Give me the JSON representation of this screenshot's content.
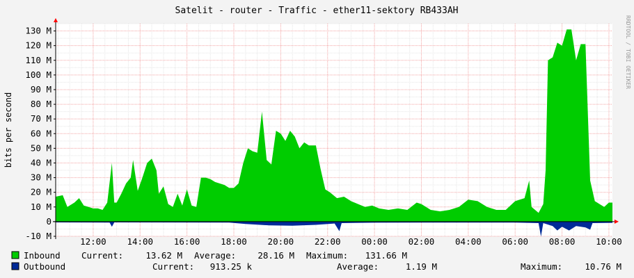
{
  "chart_data": {
    "type": "area",
    "title": "Satelit - router - Traffic - ether11-sektory RB433AH",
    "ylabel": "bits per second",
    "watermark": "RRDTOOL / TOBI OETIKER",
    "grid": true,
    "ylim": [
      -10000000,
      135000000
    ],
    "y_ticks": [
      {
        "v": 130000000,
        "label": "130 M"
      },
      {
        "v": 120000000,
        "label": "120 M"
      },
      {
        "v": 110000000,
        "label": "110 M"
      },
      {
        "v": 100000000,
        "label": "100 M"
      },
      {
        "v": 90000000,
        "label": "90 M"
      },
      {
        "v": 80000000,
        "label": "80 M"
      },
      {
        "v": 70000000,
        "label": "70 M"
      },
      {
        "v": 60000000,
        "label": "60 M"
      },
      {
        "v": 50000000,
        "label": "50 M"
      },
      {
        "v": 40000000,
        "label": "40 M"
      },
      {
        "v": 30000000,
        "label": "30 M"
      },
      {
        "v": 20000000,
        "label": "20 M"
      },
      {
        "v": 10000000,
        "label": "10 M"
      },
      {
        "v": 0,
        "label": "0"
      },
      {
        "v": -10000000,
        "label": "-10 M"
      }
    ],
    "x_hours_range": [
      10.4,
      34.15
    ],
    "x_ticks": [
      {
        "h": 12,
        "label": "12:00"
      },
      {
        "h": 14,
        "label": "14:00"
      },
      {
        "h": 16,
        "label": "16:00"
      },
      {
        "h": 18,
        "label": "18:00"
      },
      {
        "h": 20,
        "label": "20:00"
      },
      {
        "h": 22,
        "label": "22:00"
      },
      {
        "h": 24,
        "label": "00:00"
      },
      {
        "h": 26,
        "label": "02:00"
      },
      {
        "h": 28,
        "label": "04:00"
      },
      {
        "h": 30,
        "label": "06:00"
      },
      {
        "h": 32,
        "label": "08:00"
      },
      {
        "h": 34,
        "label": "10:00"
      }
    ],
    "colors": {
      "inbound": "#00cc00",
      "outbound": "#002a97",
      "canvas": "#ffffff",
      "background": "#f3f3f3",
      "grid_minor": "#e5e5e5",
      "grid_major": "#f4a3a3",
      "axis": "#ff0000",
      "text": "#000000"
    },
    "series": [
      {
        "name": "Inbound",
        "unit_scale": 1000000,
        "points": [
          [
            10.4,
            17
          ],
          [
            10.7,
            18
          ],
          [
            10.9,
            10
          ],
          [
            11.2,
            13
          ],
          [
            11.4,
            16
          ],
          [
            11.6,
            11
          ],
          [
            11.8,
            10
          ],
          [
            12.0,
            9
          ],
          [
            12.2,
            9
          ],
          [
            12.4,
            8
          ],
          [
            12.6,
            13
          ],
          [
            12.8,
            40
          ],
          [
            12.9,
            13
          ],
          [
            13.0,
            13
          ],
          [
            13.2,
            19
          ],
          [
            13.4,
            26
          ],
          [
            13.6,
            30
          ],
          [
            13.7,
            42
          ],
          [
            13.9,
            21
          ],
          [
            14.1,
            30
          ],
          [
            14.3,
            40
          ],
          [
            14.5,
            43
          ],
          [
            14.7,
            35
          ],
          [
            14.8,
            19
          ],
          [
            15.0,
            24
          ],
          [
            15.2,
            12
          ],
          [
            15.4,
            10
          ],
          [
            15.6,
            19
          ],
          [
            15.8,
            11
          ],
          [
            16.0,
            22
          ],
          [
            16.2,
            11
          ],
          [
            16.4,
            10
          ],
          [
            16.6,
            30
          ],
          [
            16.8,
            30
          ],
          [
            17.0,
            29
          ],
          [
            17.2,
            27
          ],
          [
            17.4,
            26
          ],
          [
            17.6,
            25
          ],
          [
            17.8,
            23
          ],
          [
            18.0,
            23
          ],
          [
            18.2,
            26
          ],
          [
            18.4,
            40
          ],
          [
            18.6,
            50
          ],
          [
            18.8,
            48
          ],
          [
            19.0,
            47
          ],
          [
            19.2,
            75
          ],
          [
            19.4,
            42
          ],
          [
            19.6,
            39
          ],
          [
            19.8,
            62
          ],
          [
            20.0,
            60
          ],
          [
            20.2,
            55
          ],
          [
            20.4,
            62
          ],
          [
            20.6,
            58
          ],
          [
            20.8,
            50
          ],
          [
            21.0,
            54
          ],
          [
            21.2,
            52
          ],
          [
            21.5,
            52
          ],
          [
            21.7,
            36
          ],
          [
            21.9,
            22
          ],
          [
            22.1,
            20
          ],
          [
            22.4,
            16
          ],
          [
            22.7,
            17
          ],
          [
            23.0,
            14
          ],
          [
            23.3,
            12
          ],
          [
            23.6,
            10
          ],
          [
            23.9,
            11
          ],
          [
            24.2,
            9
          ],
          [
            24.6,
            8
          ],
          [
            25.0,
            9
          ],
          [
            25.4,
            8
          ],
          [
            25.8,
            13
          ],
          [
            26.0,
            12
          ],
          [
            26.4,
            8
          ],
          [
            26.8,
            7
          ],
          [
            27.2,
            8
          ],
          [
            27.6,
            10
          ],
          [
            28.0,
            15
          ],
          [
            28.4,
            14
          ],
          [
            28.8,
            10
          ],
          [
            29.2,
            8
          ],
          [
            29.6,
            8
          ],
          [
            30.0,
            14
          ],
          [
            30.4,
            16
          ],
          [
            30.6,
            28
          ],
          [
            30.7,
            10
          ],
          [
            31.0,
            6
          ],
          [
            31.2,
            12
          ],
          [
            31.3,
            35
          ],
          [
            31.4,
            110
          ],
          [
            31.6,
            112
          ],
          [
            31.8,
            122
          ],
          [
            32.0,
            120
          ],
          [
            32.2,
            131
          ],
          [
            32.4,
            131
          ],
          [
            32.6,
            110
          ],
          [
            32.8,
            121
          ],
          [
            33.0,
            121
          ],
          [
            33.2,
            28
          ],
          [
            33.4,
            14
          ],
          [
            33.6,
            12
          ],
          [
            33.8,
            10
          ],
          [
            34.0,
            13
          ],
          [
            34.15,
            13
          ]
        ],
        "current": "13.62 M",
        "average": "28.16 M",
        "maximum": "131.66 M"
      },
      {
        "name": "Outbound",
        "unit_scale": 1000000,
        "points": [
          [
            10.4,
            -0.5
          ],
          [
            12.7,
            -0.6
          ],
          [
            12.8,
            -3.5
          ],
          [
            12.9,
            -0.5
          ],
          [
            17.8,
            -0.6
          ],
          [
            18.5,
            -1.6
          ],
          [
            19.5,
            -2.5
          ],
          [
            20.5,
            -2.8
          ],
          [
            21.5,
            -2.2
          ],
          [
            22.3,
            -1.3
          ],
          [
            22.5,
            -6.5
          ],
          [
            22.6,
            -1.0
          ],
          [
            24.0,
            -0.7
          ],
          [
            26.0,
            -0.6
          ],
          [
            30.0,
            -0.6
          ],
          [
            31.0,
            -1.0
          ],
          [
            31.1,
            -10.2
          ],
          [
            31.2,
            -1.0
          ],
          [
            31.6,
            -3.0
          ],
          [
            31.8,
            -6.0
          ],
          [
            32.0,
            -3.5
          ],
          [
            32.3,
            -6.0
          ],
          [
            32.6,
            -3.0
          ],
          [
            33.0,
            -4.0
          ],
          [
            33.2,
            -5.5
          ],
          [
            33.3,
            -1.0
          ],
          [
            34.15,
            -0.8
          ]
        ],
        "current": "913.25 k",
        "average": "1.19 M",
        "maximum": "10.76 M"
      }
    ]
  },
  "legend": {
    "inbound": {
      "name": "Inbound",
      "current_label": "Current:",
      "current": "13.62 M",
      "average_label": "Average:",
      "average": "28.16 M",
      "maximum_label": "Maximum:",
      "maximum": "131.66 M"
    },
    "outbound": {
      "name": "Outbound",
      "current_label": "Current:",
      "current": "913.25 k",
      "average_label": "Average:",
      "average": "1.19 M",
      "maximum_label": "Maximum:",
      "maximum": "10.76 M"
    }
  }
}
